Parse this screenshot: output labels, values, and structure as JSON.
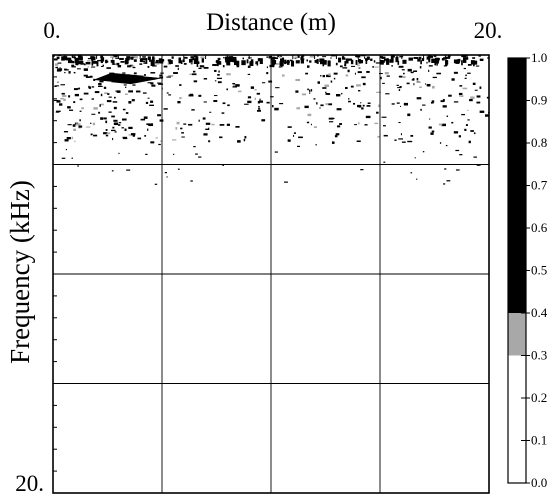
{
  "chart_data": {
    "type": "heatmap",
    "title": "",
    "xlabel": "Distance (m)",
    "ylabel": "Frequency (kHz)",
    "xlim": [
      0,
      20
    ],
    "ylim": [
      0,
      20
    ],
    "x_tick_labels": [
      "0.",
      "20."
    ],
    "y_tick_labels": [
      "20."
    ],
    "grid": true,
    "y_axis_inverted": true,
    "colormap": {
      "min": 0.0,
      "max": 1.0,
      "tick_values": [
        0.0,
        0.1,
        0.2,
        0.3,
        0.4,
        0.5,
        0.6,
        0.7,
        0.8,
        0.9,
        1.0
      ],
      "tick_labels": [
        "0.0",
        "0.1",
        "0.2",
        "0.3",
        "0.4",
        "0.5",
        "0.6",
        "0.7",
        "0.8",
        "0.9",
        "1.0"
      ],
      "bands": [
        {
          "from": 0.0,
          "to": 0.3,
          "color": "#ffffff"
        },
        {
          "from": 0.3,
          "to": 0.4,
          "color": "#a8a8a8"
        },
        {
          "from": 0.4,
          "to": 1.0,
          "color": "#000000"
        }
      ]
    },
    "dense_region": {
      "x": [
        0,
        20
      ],
      "y": [
        0,
        4
      ],
      "sparse_y": [
        4,
        6
      ]
    },
    "blobs": [
      {
        "x": 2.4,
        "y": 1.0,
        "value": 1.0
      },
      {
        "x": 3.2,
        "y": 1.1,
        "value": 1.0
      }
    ]
  },
  "colors": {
    "axis": "#000000",
    "grid": "#000000",
    "background": "#ffffff"
  }
}
